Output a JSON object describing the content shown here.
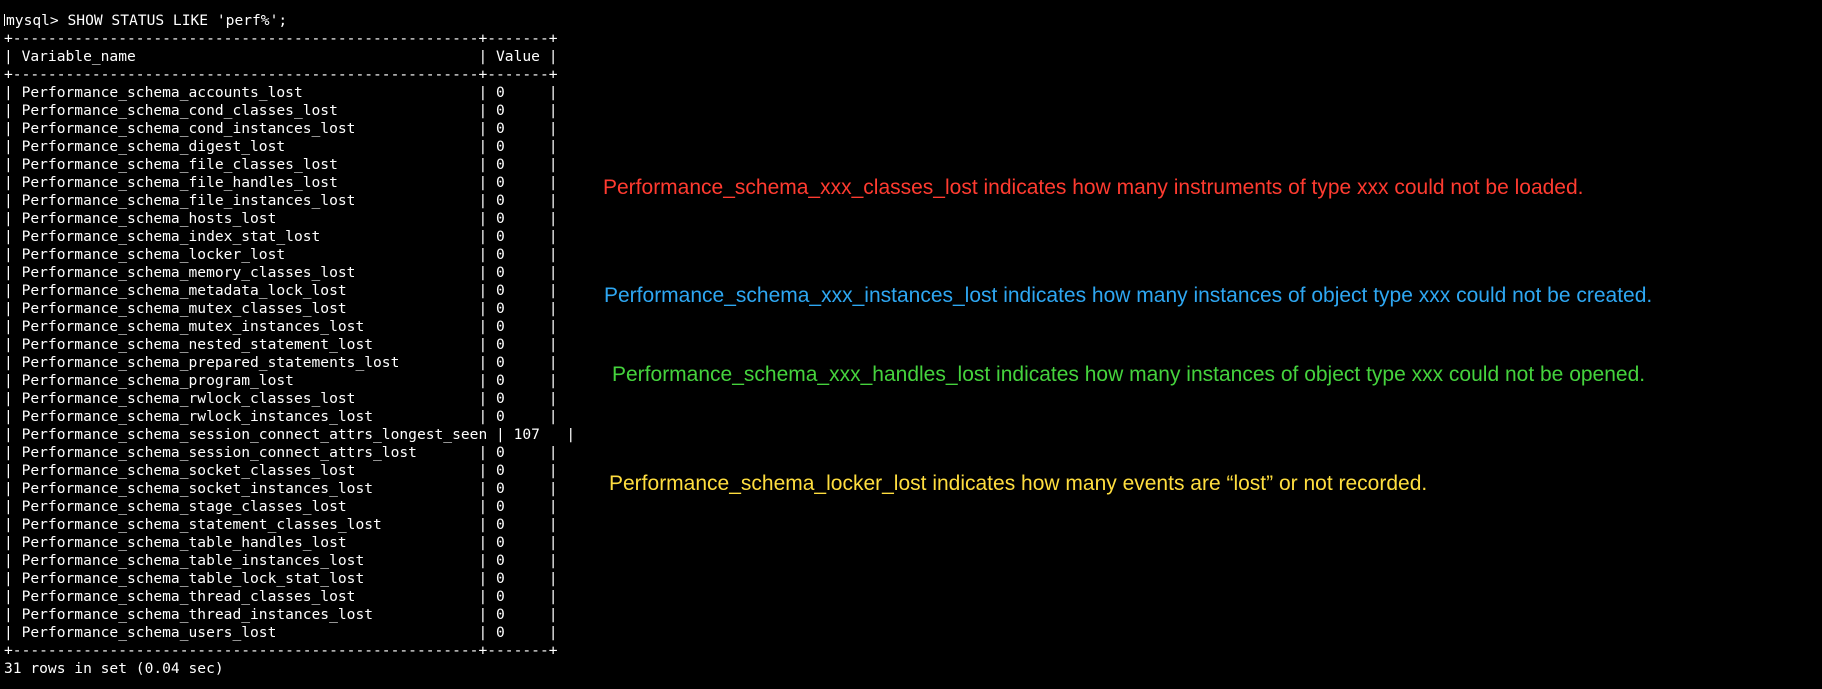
{
  "terminal": {
    "command": "mysql> SHOW STATUS LIKE 'perf%';",
    "border": "+-----------------------------------------------------+-------+",
    "header": "| Variable_name                                       | Value |",
    "rows": [
      "| Performance_schema_accounts_lost                    | 0     |",
      "| Performance_schema_cond_classes_lost                | 0     |",
      "| Performance_schema_cond_instances_lost              | 0     |",
      "| Performance_schema_digest_lost                      | 0     |",
      "| Performance_schema_file_classes_lost                | 0     |",
      "| Performance_schema_file_handles_lost                | 0     |",
      "| Performance_schema_file_instances_lost              | 0     |",
      "| Performance_schema_hosts_lost                       | 0     |",
      "| Performance_schema_index_stat_lost                  | 0     |",
      "| Performance_schema_locker_lost                      | 0     |",
      "| Performance_schema_memory_classes_lost              | 0     |",
      "| Performance_schema_metadata_lock_lost               | 0     |",
      "| Performance_schema_mutex_classes_lost               | 0     |",
      "| Performance_schema_mutex_instances_lost             | 0     |",
      "| Performance_schema_nested_statement_lost            | 0     |",
      "| Performance_schema_prepared_statements_lost         | 0     |",
      "| Performance_schema_program_lost                     | 0     |",
      "| Performance_schema_rwlock_classes_lost              | 0     |",
      "| Performance_schema_rwlock_instances_lost            | 0     |",
      "| Performance_schema_session_connect_attrs_longest_seen | 107   |",
      "| Performance_schema_session_connect_attrs_lost       | 0     |",
      "| Performance_schema_socket_classes_lost              | 0     |",
      "| Performance_schema_socket_instances_lost            | 0     |",
      "| Performance_schema_stage_classes_lost               | 0     |",
      "| Performance_schema_statement_classes_lost           | 0     |",
      "| Performance_schema_table_handles_lost               | 0     |",
      "| Performance_schema_table_instances_lost             | 0     |",
      "| Performance_schema_table_lock_stat_lost             | 0     |",
      "| Performance_schema_thread_classes_lost              | 0     |",
      "| Performance_schema_thread_instances_lost            | 0     |",
      "| Performance_schema_users_lost                       | 0     |"
    ],
    "footer": "31 rows in set (0.04 sec)"
  },
  "annotations": {
    "classes_lost": "Performance_schema_xxx_classes_lost indicates how many instruments of type xxx could not be loaded.",
    "instances_lost": "Performance_schema_xxx_instances_lost indicates how many instances of object type xxx could not be created.",
    "handles_lost": "Performance_schema_xxx_handles_lost indicates how many instances of object type xxx could not be opened.",
    "locker_lost": "Performance_schema_locker_lost indicates how many events are “lost” or not recorded."
  },
  "colors": {
    "background": "#000000",
    "terminal_text": "#ffffff",
    "classes_lost": "#ff3b30",
    "instances_lost": "#2ea7f2",
    "handles_lost": "#45d33d",
    "locker_lost": "#ffde3f"
  }
}
